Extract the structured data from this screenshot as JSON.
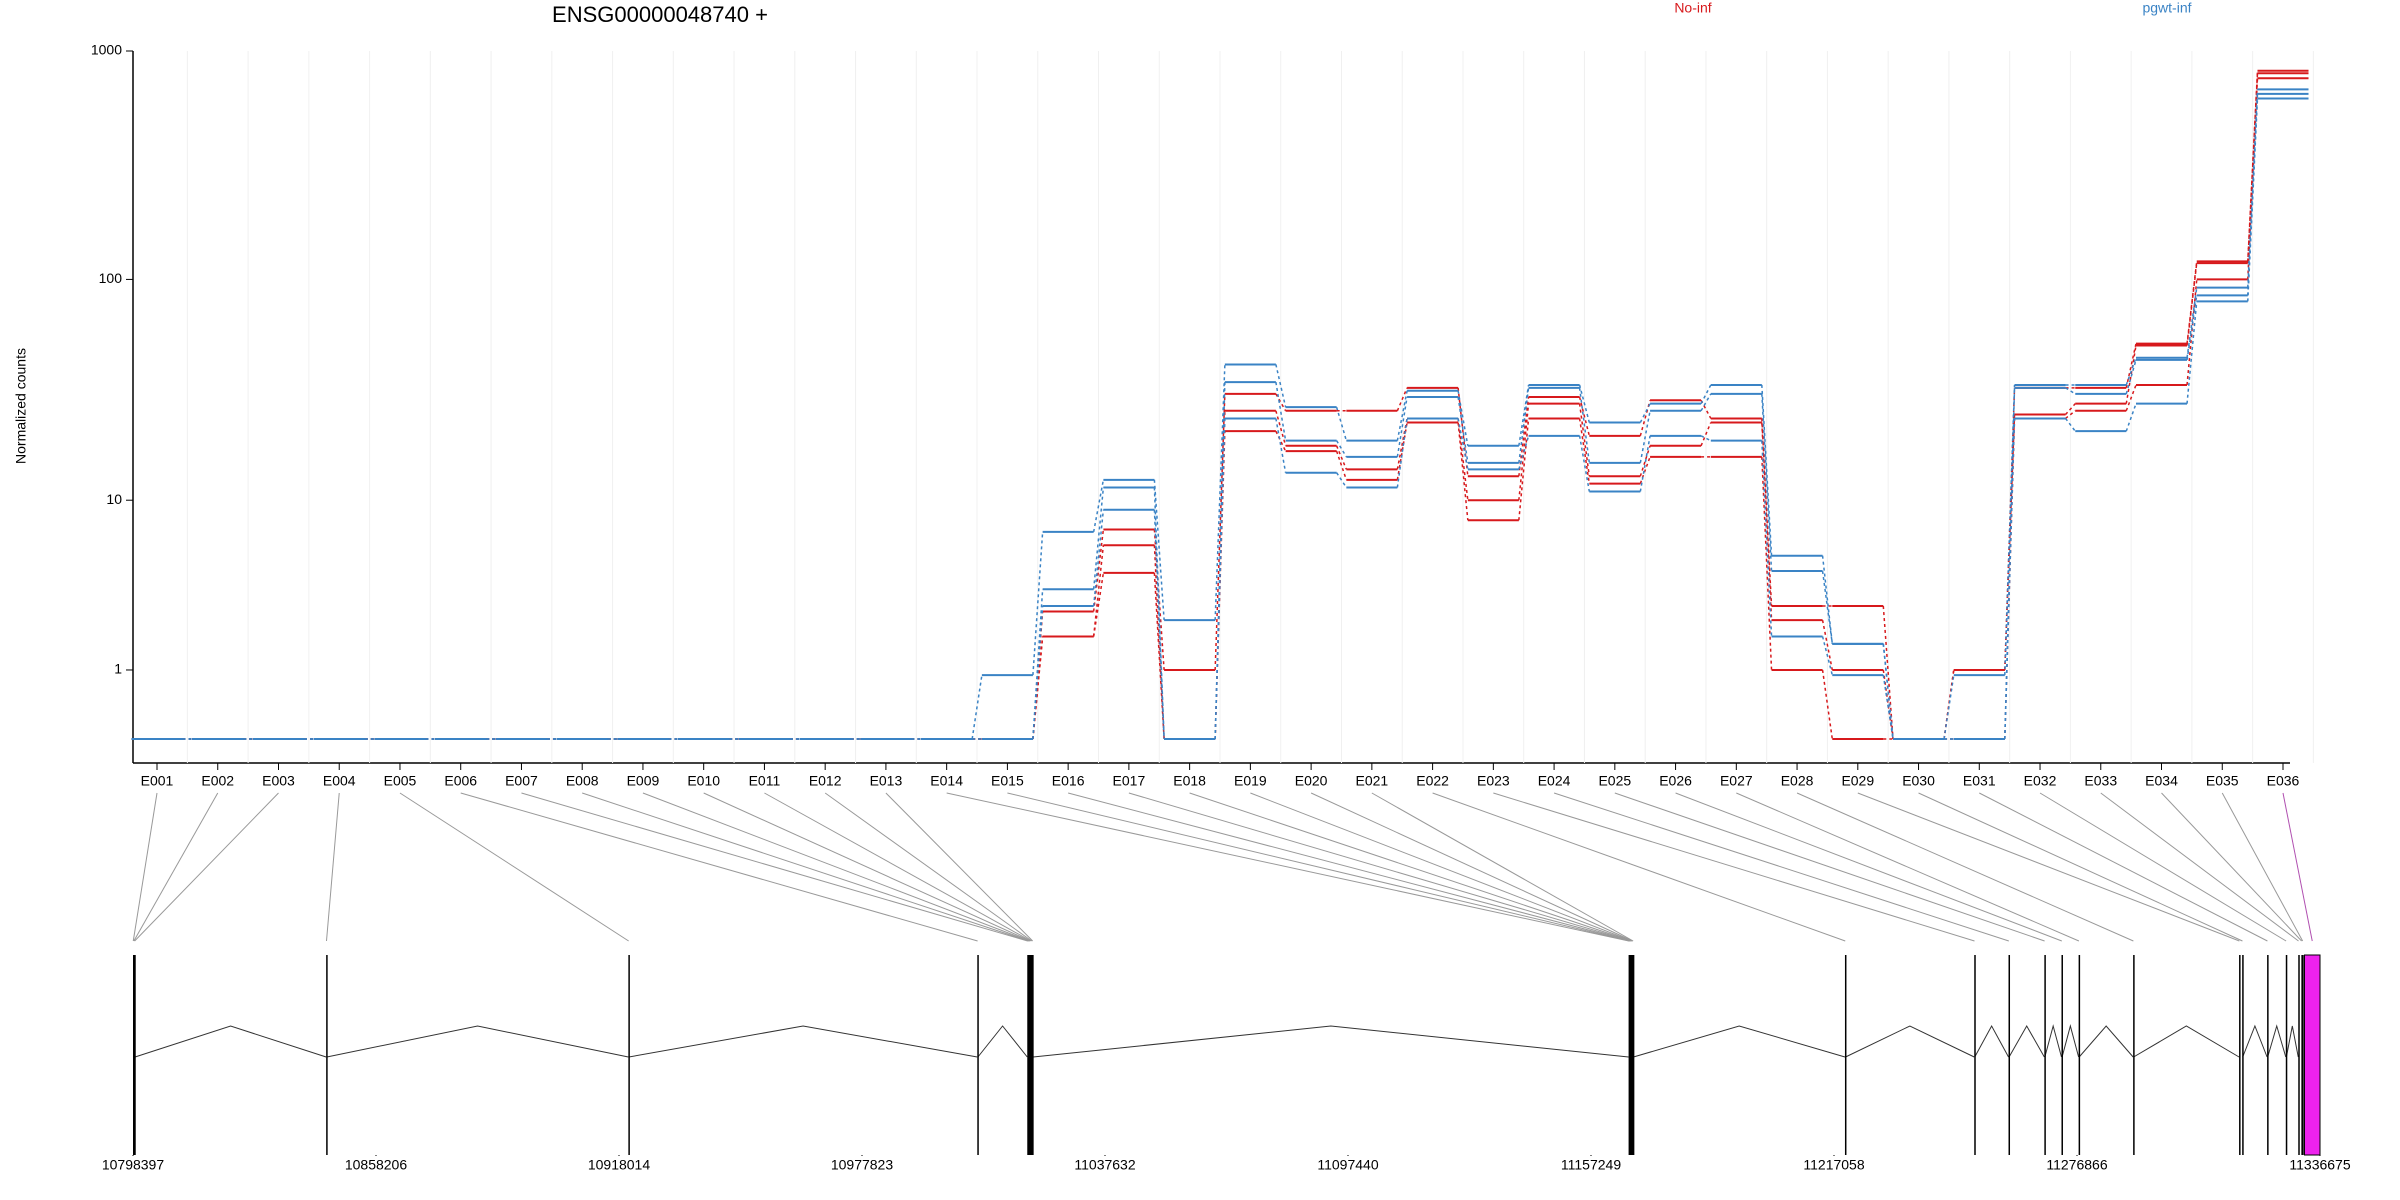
{
  "chart_data": {
    "type": "exon_usage",
    "title": "ENSG00000048740 +",
    "ylabel": "Normalized counts",
    "yscale": "log1p",
    "ylim": [
      0,
      1000
    ],
    "yticks": [
      1,
      10,
      100,
      1000
    ],
    "grid": true,
    "legend": "top",
    "categories": [
      "E001",
      "E002",
      "E003",
      "E004",
      "E005",
      "E006",
      "E007",
      "E008",
      "E009",
      "E010",
      "E011",
      "E012",
      "E013",
      "E014",
      "E015",
      "E016",
      "E017",
      "E018",
      "E019",
      "E020",
      "E021",
      "E022",
      "E023",
      "E024",
      "E025",
      "E026",
      "E027",
      "E028",
      "E029",
      "E030",
      "E031",
      "E032",
      "E033",
      "E034",
      "E035",
      "E036"
    ],
    "series": [
      {
        "name": "No-inf",
        "color": "#d7191c",
        "values": [
          [
            0,
            0,
            0,
            0,
            0,
            0,
            0,
            0,
            0,
            0,
            0,
            0,
            0,
            0,
            0,
            2.6,
            7.2,
            1.0,
            31,
            26,
            26,
            33,
            13,
            30,
            20,
            29,
            24,
            2.8,
            2.8,
            0,
            1.0,
            33,
            33,
            52,
            120,
            820
          ],
          [
            0,
            0,
            0,
            0,
            0,
            0,
            0,
            0,
            0,
            0,
            0,
            0,
            0,
            0,
            0,
            1.8,
            6,
            0,
            26,
            18,
            14,
            24,
            10,
            28,
            13,
            18,
            23,
            2.3,
            1.0,
            0,
            1.0,
            25,
            28,
            51,
            118,
            800
          ],
          [
            0,
            0,
            0,
            0,
            0,
            0,
            0,
            0,
            0,
            0,
            0,
            0,
            0,
            0,
            0,
            1.8,
            4.3,
            0,
            21,
            17,
            12.5,
            23,
            8,
            24,
            12,
            16,
            16,
            1.0,
            0,
            0,
            0,
            24,
            26,
            34,
            100,
            760
          ]
        ]
      },
      {
        "name": "pgwt-inf",
        "color": "#3a83c5",
        "values": [
          [
            0,
            0,
            0,
            0,
            0,
            0,
            0,
            0,
            0,
            0,
            0,
            0,
            0,
            0,
            0.9,
            7,
            12.5,
            2.3,
            42,
            27,
            19,
            32,
            18,
            34,
            23,
            28,
            34,
            5.3,
            1.6,
            0,
            0.9,
            34,
            34,
            45,
            92,
            680
          ],
          [
            0,
            0,
            0,
            0,
            0,
            0,
            0,
            0,
            0,
            0,
            0,
            0,
            0,
            0,
            0,
            3.5,
            11.5,
            0,
            35,
            19,
            16,
            30,
            15,
            33,
            15,
            26,
            31,
            4.4,
            1.6,
            0,
            0,
            33,
            31,
            44,
            85,
            650
          ],
          [
            0,
            0,
            0,
            0,
            0,
            0,
            0,
            0,
            0,
            0,
            0,
            0,
            0,
            0,
            0,
            2.8,
            9,
            0,
            24,
            13.5,
            11.5,
            24,
            14,
            20,
            11,
            20,
            19,
            1.8,
            0.9,
            0,
            0,
            24,
            21,
            28,
            80,
            620
          ]
        ]
      }
    ],
    "xlim": [
      10798397,
      11336675
    ],
    "xticks": [
      10798397,
      10858206,
      10918014,
      10977823,
      11037632,
      11097440,
      11157249,
      11217058,
      11276866,
      11336675
    ],
    "exons": [
      {
        "start": 10798397,
        "end": 10798520,
        "fill": "#000000"
      },
      {
        "start": 10798521,
        "end": 10798700,
        "fill": "#000000"
      },
      {
        "start": 10798701,
        "end": 10798900,
        "fill": "#000000"
      },
      {
        "start": 10845939,
        "end": 10846100,
        "fill": "#000000"
      },
      {
        "start": 10920318,
        "end": 10920450,
        "fill": "#000000"
      },
      {
        "start": 11006200,
        "end": 11006350,
        "fill": "#000000"
      },
      {
        "start": 11018500,
        "end": 11018700,
        "fill": "#000000"
      },
      {
        "start": 11018701,
        "end": 11018900,
        "fill": "#000000"
      },
      {
        "start": 11018901,
        "end": 11019100,
        "fill": "#000000"
      },
      {
        "start": 11019101,
        "end": 11019300,
        "fill": "#000000"
      },
      {
        "start": 11019301,
        "end": 11019500,
        "fill": "#000000"
      },
      {
        "start": 11019501,
        "end": 11019700,
        "fill": "#000000"
      },
      {
        "start": 11019701,
        "end": 11019950,
        "fill": "#000000"
      },
      {
        "start": 11166500,
        "end": 11166650,
        "fill": "#000000"
      },
      {
        "start": 11166651,
        "end": 11166800,
        "fill": "#000000"
      },
      {
        "start": 11166801,
        "end": 11166950,
        "fill": "#000000"
      },
      {
        "start": 11166951,
        "end": 11167100,
        "fill": "#000000"
      },
      {
        "start": 11167101,
        "end": 11167250,
        "fill": "#000000"
      },
      {
        "start": 11167251,
        "end": 11167400,
        "fill": "#000000"
      },
      {
        "start": 11167401,
        "end": 11167550,
        "fill": "#000000"
      },
      {
        "start": 11167551,
        "end": 11167700,
        "fill": "#000000"
      },
      {
        "start": 11219754,
        "end": 11219900,
        "fill": "#000000"
      },
      {
        "start": 11251576,
        "end": 11251700,
        "fill": "#000000"
      },
      {
        "start": 11260011,
        "end": 11260150,
        "fill": "#000000"
      },
      {
        "start": 11268829,
        "end": 11268950,
        "fill": "#000000"
      },
      {
        "start": 11273046,
        "end": 11273200,
        "fill": "#000000"
      },
      {
        "start": 11277264,
        "end": 11277400,
        "fill": "#000000"
      },
      {
        "start": 11290683,
        "end": 11290800,
        "fill": "#000000"
      },
      {
        "start": 11316754,
        "end": 11316900,
        "fill": "#000000"
      },
      {
        "start": 11317520,
        "end": 11317650,
        "fill": "#000000"
      },
      {
        "start": 11323655,
        "end": 11323800,
        "fill": "#000000"
      },
      {
        "start": 11328255,
        "end": 11328400,
        "fill": "#000000"
      },
      {
        "start": 11331323,
        "end": 11331450,
        "fill": "#000000"
      },
      {
        "start": 11332089,
        "end": 11332200,
        "fill": "#000000"
      },
      {
        "start": 11332300,
        "end": 11332500,
        "fill": "#000000"
      },
      {
        "start": 11332856,
        "end": 11336675,
        "fill": "#ee22ee"
      }
    ]
  }
}
